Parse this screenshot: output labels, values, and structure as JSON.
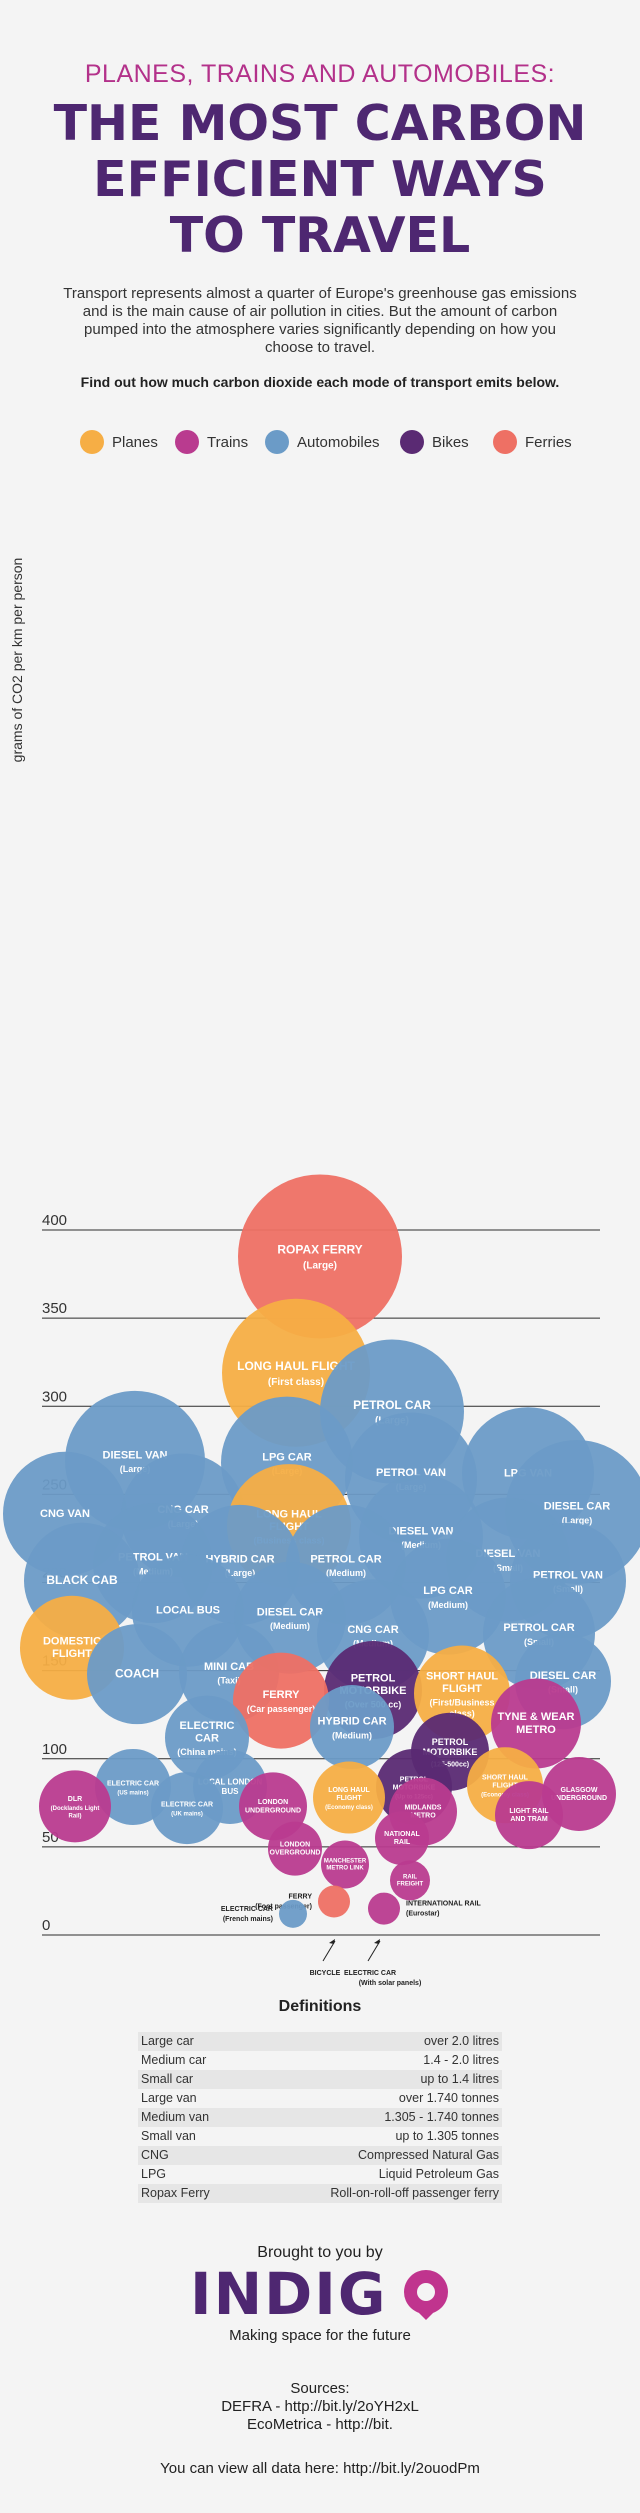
{
  "header": {
    "kicker": "PLANES, TRAINS AND AUTOMOBILES:",
    "title_line1": "THE MOST CARBON",
    "title_line2": "EFFICIENT WAYS",
    "title_line3": "TO TRAVEL",
    "intro": "Transport represents almost a quarter of Europe's greenhouse gas emissions and is the main cause of air pollution in cities. But the amount of carbon pumped into the atmosphere varies significantly depending on how you choose to travel.",
    "cta": "Find out how much carbon dioxide each mode of transport emits below."
  },
  "colors": {
    "Planes": "#f6ae45",
    "Trains": "#b93b8f",
    "Automobiles": "#6b9bc7",
    "Bikes": "#5a2a73",
    "Ferries": "#ee7064"
  },
  "legend": [
    {
      "label": "Planes",
      "category": "Planes"
    },
    {
      "label": "Trains",
      "category": "Trains"
    },
    {
      "label": "Automobiles",
      "category": "Automobiles"
    },
    {
      "label": "Bikes",
      "category": "Bikes"
    },
    {
      "label": "Ferries",
      "category": "Ferries"
    }
  ],
  "chart_data": {
    "type": "scatter",
    "title": "",
    "ylabel": "grams of CO2 per km per person",
    "xlabel": "",
    "ylim": [
      0,
      400
    ],
    "yticks": [
      0,
      50,
      100,
      150,
      200,
      250,
      300,
      350,
      400
    ],
    "grid": true,
    "legend_position": "top",
    "points": [
      {
        "name": "ROPAX FERRY",
        "sub": "(Large)",
        "category": "Ferries",
        "y": 385
      },
      {
        "name": "LONG HAUL FLIGHT",
        "sub": "(First class)",
        "category": "Planes",
        "y": 319
      },
      {
        "name": "PETROL CAR",
        "sub": "(Large)",
        "category": "Automobiles",
        "y": 297
      },
      {
        "name": "DIESEL VAN",
        "sub": "(Large)",
        "category": "Automobiles",
        "y": 269
      },
      {
        "name": "LPG CAR",
        "sub": "(Large)",
        "category": "Automobiles",
        "y": 268
      },
      {
        "name": "LPG VAN",
        "sub": "",
        "category": "Automobiles",
        "y": 262
      },
      {
        "name": "PETROL VAN",
        "sub": "(Large)",
        "category": "Automobiles",
        "y": 259
      },
      {
        "name": "DIESEL CAR",
        "sub": "(Large)",
        "category": "Automobiles",
        "y": 240
      },
      {
        "name": "CNG VAN",
        "sub": "",
        "category": "Automobiles",
        "y": 239
      },
      {
        "name": "CNG CAR",
        "sub": "(Large)",
        "category": "Automobiles",
        "y": 238
      },
      {
        "name": "LONG HAUL FLIGHT",
        "sub": "(Business class)",
        "category": "Planes",
        "y": 232
      },
      {
        "name": "DIESEL VAN",
        "sub": "(Medium)",
        "category": "Automobiles",
        "y": 226
      },
      {
        "name": "DIESEL VAN",
        "sub": "(Small)",
        "category": "Automobiles",
        "y": 213
      },
      {
        "name": "PETROL VAN",
        "sub": "(Medium)",
        "category": "Automobiles",
        "y": 211
      },
      {
        "name": "HYBRID CAR",
        "sub": "(Large)",
        "category": "Automobiles",
        "y": 210
      },
      {
        "name": "PETROL CAR",
        "sub": "(Medium)",
        "category": "Automobiles",
        "y": 210
      },
      {
        "name": "BLACK CAB",
        "sub": "",
        "category": "Automobiles",
        "y": 201
      },
      {
        "name": "PETROL VAN",
        "sub": "(Small)",
        "category": "Automobiles",
        "y": 201
      },
      {
        "name": "LPG CAR",
        "sub": "(Medium)",
        "category": "Automobiles",
        "y": 192
      },
      {
        "name": "LOCAL BUS",
        "sub": "",
        "category": "Automobiles",
        "y": 184
      },
      {
        "name": "DIESEL CAR",
        "sub": "(Medium)",
        "category": "Automobiles",
        "y": 180
      },
      {
        "name": "PETROL CAR",
        "sub": "(Small)",
        "category": "Automobiles",
        "y": 171
      },
      {
        "name": "CNG CAR",
        "sub": "(Medium)",
        "category": "Automobiles",
        "y": 170
      },
      {
        "name": "DOMESTIC FLIGHT",
        "sub": "",
        "category": "Planes",
        "y": 163
      },
      {
        "name": "COACH",
        "sub": "",
        "category": "Automobiles",
        "y": 148
      },
      {
        "name": "MINI CAB",
        "sub": "(Taxi)",
        "category": "Automobiles",
        "y": 149
      },
      {
        "name": "DIESEL CAR",
        "sub": "(Small)",
        "category": "Automobiles",
        "y": 144
      },
      {
        "name": "PETROL MOTORBIKE",
        "sub": "(Over 500 cc)",
        "category": "Bikes",
        "y": 139
      },
      {
        "name": "SHORT HAUL FLIGHT",
        "sub": "(First/Business class)",
        "category": "Planes",
        "y": 137
      },
      {
        "name": "FERRY",
        "sub": "(Car passenger)",
        "category": "Ferries",
        "y": 133
      },
      {
        "name": "TYNE & WEAR METRO",
        "sub": "",
        "category": "Trains",
        "y": 120
      },
      {
        "name": "HYBRID CAR",
        "sub": "(Medium)",
        "category": "Automobiles",
        "y": 118
      },
      {
        "name": "ELECTRIC CAR",
        "sub": "(China mains)",
        "category": "Automobiles",
        "y": 112
      },
      {
        "name": "PETROL MOTORBIKE",
        "sub": "(125-500cc)",
        "category": "Bikes",
        "y": 104
      },
      {
        "name": "SHORT HAUL FLIGHT",
        "sub": "(Economy class)",
        "category": "Planes",
        "y": 85
      },
      {
        "name": "ELECTRIC CAR",
        "sub": "(US mains)",
        "category": "Automobiles",
        "y": 84
      },
      {
        "name": "LOCAL LONDON BUS",
        "sub": "",
        "category": "Automobiles",
        "y": 84
      },
      {
        "name": "PETROL MOTORBIKE",
        "sub": "(Up to 125cc)",
        "category": "Bikes",
        "y": 84
      },
      {
        "name": "GLASGOW UNDERGROUND",
        "sub": "",
        "category": "Trains",
        "y": 80
      },
      {
        "name": "LONG HAUL FLIGHT",
        "sub": "(Economy class)",
        "category": "Planes",
        "y": 78
      },
      {
        "name": "DLR",
        "sub": "(Docklands Light Rail)",
        "category": "Trains",
        "y": 73
      },
      {
        "name": "ELECTRIC CAR",
        "sub": "(UK mains)",
        "category": "Automobiles",
        "y": 72
      },
      {
        "name": "LONDON UNDERGROUND",
        "sub": "",
        "category": "Trains",
        "y": 73
      },
      {
        "name": "MIDLANDS METRO",
        "sub": "",
        "category": "Trains",
        "y": 70
      },
      {
        "name": "LIGHT RAIL AND TRAM",
        "sub": "",
        "category": "Trains",
        "y": 68
      },
      {
        "name": "NATIONAL RAIL",
        "sub": "",
        "category": "Trains",
        "y": 55
      },
      {
        "name": "LONDON OVERGROUND",
        "sub": "",
        "category": "Trains",
        "y": 49
      },
      {
        "name": "MANCHESTER METRO LINK",
        "sub": "",
        "category": "Trains",
        "y": 40
      },
      {
        "name": "RAIL FREIGHT",
        "sub": "",
        "category": "Trains",
        "y": 31
      },
      {
        "name": "FERRY",
        "sub": "(Foot passenger)",
        "category": "Ferries",
        "y": 19
      },
      {
        "name": "INTERNATIONAL RAIL",
        "sub": "(Eurostar)",
        "category": "Trains",
        "y": 15
      },
      {
        "name": "ELECTRIC CAR",
        "sub": "(French mains)",
        "category": "Automobiles",
        "y": 12
      },
      {
        "name": "BICYCLE",
        "sub": "",
        "category": "Bikes",
        "y": 0
      },
      {
        "name": "ELECTRIC CAR",
        "sub": "(With solar panels)",
        "category": "Automobiles",
        "y": 0
      }
    ]
  },
  "definitions": {
    "title": "Definitions",
    "rows": [
      {
        "term": "Large car",
        "value": "over 2.0 litres"
      },
      {
        "term": "Medium car",
        "value": "1.4 - 2.0 litres"
      },
      {
        "term": "Small car",
        "value": "up to 1.4 litres"
      },
      {
        "term": "Large van",
        "value": "over 1.740 tonnes"
      },
      {
        "term": "Medium van",
        "value": "1.305 - 1.740 tonnes"
      },
      {
        "term": "Small van",
        "value": "up to 1.305 tonnes"
      },
      {
        "term": "CNG",
        "value": "Compressed Natural Gas"
      },
      {
        "term": "LPG",
        "value": "Liquid Petroleum Gas"
      },
      {
        "term": "Ropax Ferry",
        "value": "Roll-on-roll-off passenger ferry"
      }
    ]
  },
  "footer": {
    "brought": "Brought to you by",
    "logo_text": "INDIGO",
    "tagline": "Making space for the future",
    "sources_title": "Sources:",
    "source1": "DEFRA - http://bit.ly/2oYH2xL",
    "source2": "EcoMetrica - http://bit.",
    "viewall": "You can view all data here: http://bit.ly/2ouodPm"
  }
}
